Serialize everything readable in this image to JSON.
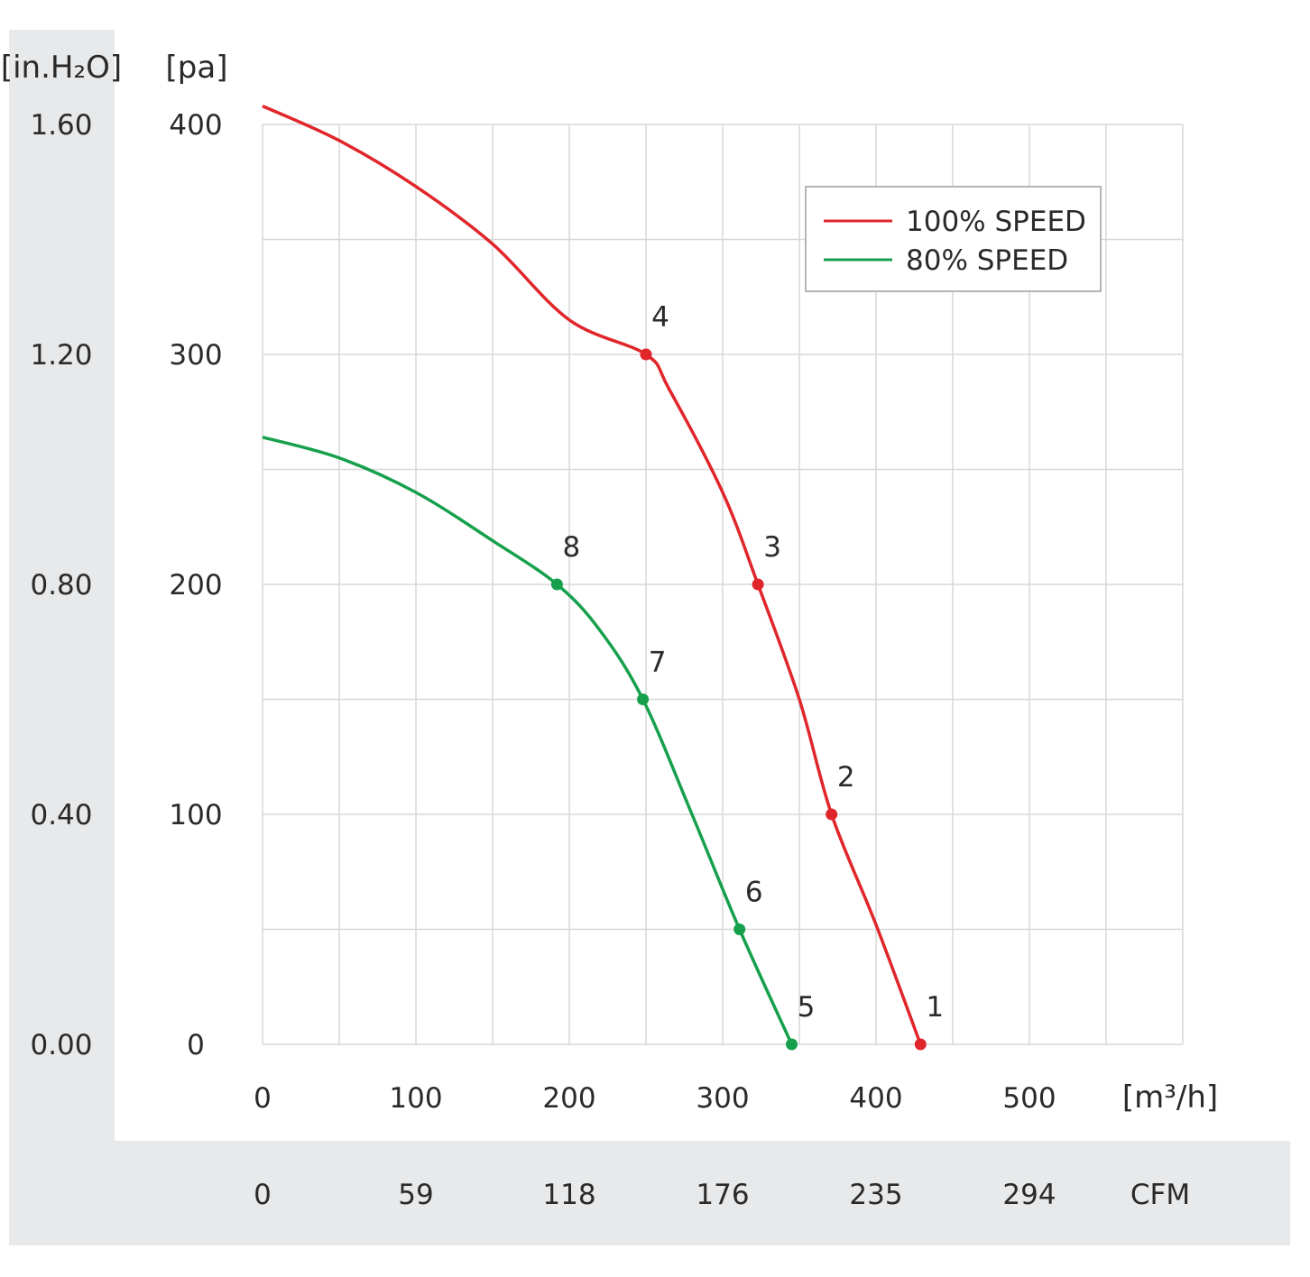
{
  "chart_data": {
    "type": "line",
    "title": "",
    "x_unit": "[m³/h]",
    "x_secondary_unit": "CFM",
    "y_unit": "[pa]",
    "y_secondary_unit": "[in.H₂O]",
    "xlim": [
      0,
      600
    ],
    "ylim": [
      0,
      400
    ],
    "x_ticks": [
      "0",
      "100",
      "200",
      "300",
      "400",
      "500"
    ],
    "x_secondary_ticks": [
      "0",
      "59",
      "118",
      "176",
      "235",
      "294"
    ],
    "y_ticks": [
      "0",
      "100",
      "200",
      "300",
      "400"
    ],
    "y_secondary_ticks": [
      "0.00",
      "0.40",
      "0.80",
      "1.20",
      "1.60"
    ],
    "grid": true,
    "legend_position": "top-right",
    "series": [
      {
        "name": "100% SPEED",
        "color": "#e0262b",
        "curve": [
          [
            0,
            408
          ],
          [
            50,
            393
          ],
          [
            100,
            373
          ],
          [
            150,
            348
          ],
          [
            200,
            315
          ],
          [
            250,
            300
          ],
          [
            265,
            285
          ],
          [
            300,
            240
          ],
          [
            323,
            200
          ],
          [
            350,
            150
          ],
          [
            371,
            100
          ],
          [
            400,
            52
          ],
          [
            429,
            0
          ]
        ],
        "points": [
          {
            "label": "1",
            "x": 429,
            "y": 0
          },
          {
            "label": "2",
            "x": 371,
            "y": 100
          },
          {
            "label": "3",
            "x": 323,
            "y": 200
          },
          {
            "label": "4",
            "x": 250,
            "y": 300
          }
        ]
      },
      {
        "name": "80% SPEED",
        "color": "#16a04c",
        "curve": [
          [
            0,
            264
          ],
          [
            50,
            255
          ],
          [
            100,
            240
          ],
          [
            150,
            219
          ],
          [
            192,
            200
          ],
          [
            220,
            180
          ],
          [
            248,
            150
          ],
          [
            280,
            100
          ],
          [
            311,
            50
          ],
          [
            345,
            0
          ]
        ],
        "points": [
          {
            "label": "5",
            "x": 345,
            "y": 0
          },
          {
            "label": "6",
            "x": 311,
            "y": 50
          },
          {
            "label": "7",
            "x": 248,
            "y": 150
          },
          {
            "label": "8",
            "x": 192,
            "y": 200
          }
        ]
      }
    ]
  }
}
